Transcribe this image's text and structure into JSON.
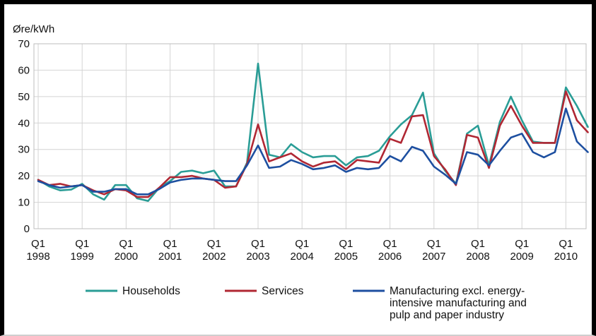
{
  "chart_data": {
    "type": "line",
    "title": "",
    "ylabel": "Øre/kWh",
    "xlabel": "",
    "ylim": [
      0,
      70
    ],
    "yticks": [
      0,
      10,
      20,
      30,
      40,
      50,
      60,
      70
    ],
    "grid": true,
    "legend_position": "bottom",
    "xtick_labels": [
      {
        "quarter": "Q1",
        "year": "1998"
      },
      {
        "quarter": "Q1",
        "year": "1999"
      },
      {
        "quarter": "Q1",
        "year": "2000"
      },
      {
        "quarter": "Q1",
        "year": "2001"
      },
      {
        "quarter": "Q1",
        "year": "2002"
      },
      {
        "quarter": "Q1",
        "year": "2003"
      },
      {
        "quarter": "Q1",
        "year": "2004"
      },
      {
        "quarter": "Q1",
        "year": "2005"
      },
      {
        "quarter": "Q1",
        "year": "2006"
      },
      {
        "quarter": "Q1",
        "year": "2007"
      },
      {
        "quarter": "Q1",
        "year": "2008"
      },
      {
        "quarter": "Q1",
        "year": "2009"
      },
      {
        "quarter": "Q1",
        "year": "2010"
      }
    ],
    "x": [
      "1998Q1",
      "1998Q2",
      "1998Q3",
      "1998Q4",
      "1999Q1",
      "1999Q2",
      "1999Q3",
      "1999Q4",
      "2000Q1",
      "2000Q2",
      "2000Q3",
      "2000Q4",
      "2001Q1",
      "2001Q2",
      "2001Q3",
      "2001Q4",
      "2002Q1",
      "2002Q2",
      "2002Q3",
      "2002Q4",
      "2003Q1",
      "2003Q2",
      "2003Q3",
      "2003Q4",
      "2004Q1",
      "2004Q2",
      "2004Q3",
      "2004Q4",
      "2005Q1",
      "2005Q2",
      "2005Q3",
      "2005Q4",
      "2006Q1",
      "2006Q2",
      "2006Q3",
      "2006Q4",
      "2007Q1",
      "2007Q2",
      "2007Q3",
      "2007Q4",
      "2008Q1",
      "2008Q2",
      "2008Q3",
      "2008Q4",
      "2009Q1",
      "2009Q2",
      "2009Q3",
      "2009Q4",
      "2010Q1",
      "2010Q2",
      "2010Q3"
    ],
    "series": [
      {
        "name": "Households",
        "color": "#2a9d96",
        "values": [
          18.5,
          16,
          14.5,
          14.8,
          17,
          13,
          11,
          16.5,
          16.5,
          11.5,
          10.5,
          15.5,
          18,
          21.5,
          22,
          21,
          22,
          16,
          16,
          25,
          62.5,
          28,
          27,
          32,
          29,
          27,
          27.5,
          27.5,
          24,
          27,
          27.5,
          29.5,
          35,
          39.5,
          43,
          51.5,
          28.5,
          22,
          17,
          36,
          39,
          24,
          40.5,
          50,
          41,
          33,
          32.5,
          32.5,
          53.5,
          46.5,
          38.5
        ]
      },
      {
        "name": "Services",
        "color": "#b02733",
        "values": [
          18.5,
          16.5,
          17,
          16,
          16.5,
          14.5,
          13,
          15,
          14.5,
          12,
          12,
          15.5,
          19.5,
          19.5,
          20,
          19,
          18.5,
          15.5,
          16,
          24.5,
          39.5,
          25.5,
          27,
          28.5,
          25.5,
          23.5,
          25,
          25.5,
          22.5,
          26,
          25.5,
          25,
          34,
          32.5,
          42.5,
          43,
          27.5,
          22.5,
          16.5,
          35.5,
          34.5,
          23,
          39,
          46.5,
          39,
          32.5,
          32.5,
          32.5,
          52,
          41,
          36.5
        ]
      },
      {
        "name": "Manufacturing excl. energy-intensive manufacturing and pulp and paper industry",
        "color": "#1d4fa0",
        "values": [
          18,
          16.5,
          15.5,
          16,
          16.5,
          14,
          14,
          15,
          15,
          13,
          13,
          15,
          17.5,
          18.5,
          19,
          19,
          18.5,
          18,
          18,
          24,
          31.5,
          23,
          23.5,
          26,
          24.5,
          22.5,
          23,
          24,
          21.5,
          23,
          22.5,
          23,
          27.5,
          25.5,
          31,
          29.5,
          23.5,
          20.5,
          17,
          29,
          28,
          24,
          29.5,
          34.5,
          36,
          29,
          27,
          29,
          45.5,
          33,
          29
        ]
      }
    ]
  }
}
